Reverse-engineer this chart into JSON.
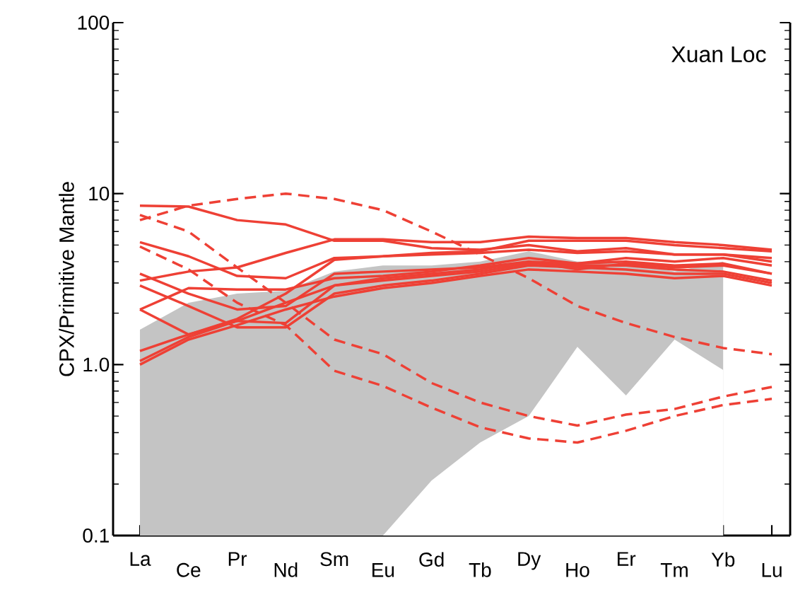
{
  "chart_data": {
    "type": "line",
    "ylabel": "CPX/Primitive Mantle",
    "annotations": [
      "Xuan Loc"
    ],
    "categories": [
      "La",
      "Ce",
      "Pr",
      "Nd",
      "Sm",
      "Eu",
      "Gd",
      "Tb",
      "Dy",
      "Ho",
      "Er",
      "Tm",
      "Yb",
      "Lu"
    ],
    "log": true,
    "ylim": [
      0.1,
      100
    ],
    "yticks": [
      {
        "value": 0.1,
        "label": "0.1"
      },
      {
        "value": 1,
        "label": "1.0"
      },
      10,
      100
    ],
    "marker": "none",
    "series": [
      {
        "type": "area",
        "color": "#c4c4c4",
        "values": [
          1.6,
          2.3,
          2.6,
          2.7,
          3.5,
          3.8,
          3.8,
          4.0,
          4.6,
          4.0,
          4.0,
          3.5,
          4.0,
          null
        ]
      },
      {
        "type": "area",
        "color": "#ffffff",
        "values": [
          0.1,
          0.1,
          0.1,
          0.1,
          0.1,
          0.1,
          0.21,
          0.35,
          0.5,
          1.27,
          0.66,
          1.4,
          0.93,
          null
        ]
      },
      {
        "color": "#ee4035",
        "line_style": "dashed",
        "values": [
          7.0,
          8.5,
          9.3,
          10,
          9.3,
          8.0,
          6.0,
          4.4,
          3.2,
          2.2,
          1.75,
          1.45,
          1.25,
          1.15
        ]
      },
      {
        "color": "#ee4035",
        "line_style": "dashed",
        "values": [
          7.5,
          6.0,
          3.7,
          2.3,
          1.4,
          1.15,
          0.78,
          0.6,
          0.5,
          0.44,
          0.51,
          0.55,
          0.65,
          0.74
        ]
      },
      {
        "color": "#ee4035",
        "line_style": "dashed",
        "values": [
          4.9,
          3.6,
          2.3,
          1.7,
          0.92,
          0.75,
          0.56,
          0.43,
          0.37,
          0.35,
          0.41,
          0.5,
          0.58,
          0.63
        ]
      },
      {
        "color": "#ee4035",
        "line_style": "solid",
        "values": [
          8.5,
          8.4,
          7.0,
          6.6,
          5.3,
          5.3,
          4.8,
          4.7,
          5.0,
          4.6,
          4.8,
          4.4,
          4.4,
          4.0
        ]
      },
      {
        "color": "#ee4035",
        "line_style": "solid",
        "values": [
          5.2,
          4.3,
          3.3,
          3.2,
          4.2,
          4.3,
          4.5,
          4.6,
          5.3,
          5.3,
          5.3,
          5.0,
          4.8,
          4.6
        ]
      },
      {
        "color": "#ee4035",
        "line_style": "solid",
        "values": [
          3.1,
          3.5,
          3.7,
          4.5,
          5.4,
          5.4,
          5.2,
          5.2,
          5.6,
          5.5,
          5.5,
          5.2,
          5.0,
          4.7
        ]
      },
      {
        "color": "#ee4035",
        "line_style": "solid",
        "values": [
          3.4,
          2.6,
          2.1,
          2.2,
          3.4,
          3.5,
          3.6,
          3.7,
          4.0,
          3.6,
          3.9,
          3.7,
          3.8,
          3.4
        ]
      },
      {
        "color": "#ee4035",
        "line_style": "solid",
        "values": [
          2.1,
          2.8,
          2.75,
          2.75,
          3.2,
          3.3,
          3.5,
          3.8,
          4.2,
          3.9,
          4.2,
          4.0,
          4.2,
          3.8
        ]
      },
      {
        "color": "#ee4035",
        "line_style": "solid",
        "values": [
          2.9,
          2.2,
          1.65,
          1.65,
          2.6,
          2.9,
          3.1,
          3.4,
          3.8,
          3.7,
          3.6,
          3.4,
          3.4,
          3.0
        ]
      },
      {
        "color": "#ee4035",
        "line_style": "solid",
        "values": [
          2.1,
          1.5,
          1.8,
          1.75,
          2.9,
          3.1,
          3.3,
          3.5,
          3.9,
          3.8,
          3.8,
          3.6,
          3.5,
          3.1
        ]
      },
      {
        "color": "#ee4035",
        "line_style": "solid",
        "values": [
          1.2,
          1.5,
          1.85,
          2.6,
          4.1,
          4.3,
          4.4,
          4.5,
          4.7,
          4.5,
          4.6,
          4.4,
          4.4,
          4.2
        ]
      },
      {
        "color": "#ee4035",
        "line_style": "solid",
        "values": [
          1.05,
          1.45,
          1.8,
          2.3,
          2.9,
          3.2,
          3.4,
          3.6,
          4.0,
          3.9,
          4.0,
          3.8,
          3.9,
          3.4
        ]
      },
      {
        "color": "#ee4035",
        "line_style": "solid",
        "values": [
          1.0,
          1.4,
          1.7,
          2.1,
          2.5,
          2.8,
          3.0,
          3.3,
          3.6,
          3.5,
          3.4,
          3.2,
          3.3,
          2.9
        ]
      }
    ]
  }
}
